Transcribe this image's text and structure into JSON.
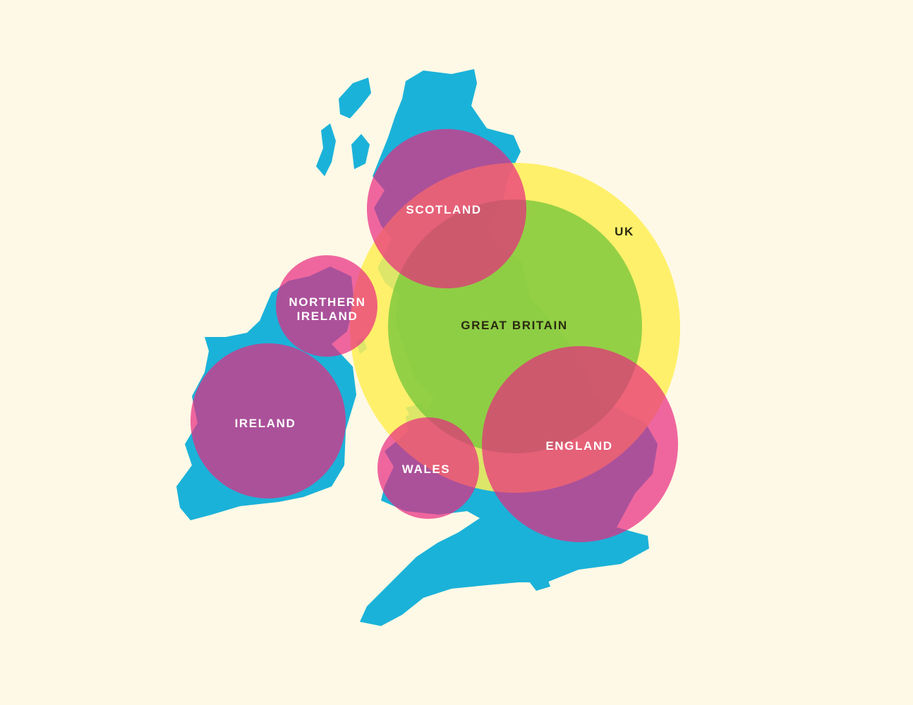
{
  "colors": {
    "background": "#FEF9E6",
    "land": "#1BB2D9",
    "uk": "#FFEF55",
    "great_britain": "#7DC83D",
    "country": "#E8287F",
    "label_light": "#FFFFFF",
    "label_dark": "#2A2A10"
  },
  "labels": {
    "uk": "UK",
    "great_britain": "GREAT BRITAIN",
    "scotland": "SCOTLAND",
    "northern_ireland_line1": "NORTHERN",
    "northern_ireland_line2": "IRELAND",
    "ireland": "IRELAND",
    "wales": "WALES",
    "england": "ENGLAND"
  }
}
